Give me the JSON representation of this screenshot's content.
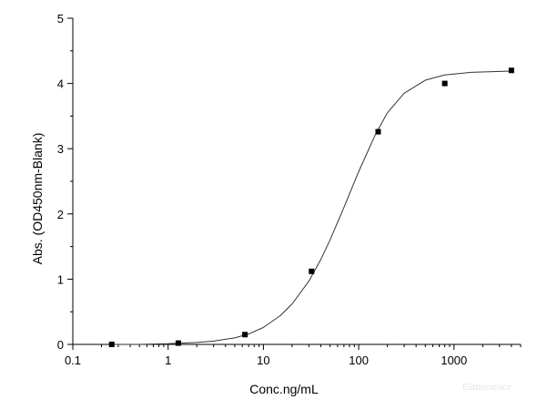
{
  "chart_data": {
    "type": "scatter",
    "xscale": "log",
    "xlabel": "Conc.ng/mL",
    "ylabel": "Abs. (OD450nm-Blank)",
    "xlim": [
      0.1,
      5000
    ],
    "ylim": [
      0,
      5
    ],
    "xticks": [
      {
        "value": 0.1,
        "label": "0.1"
      },
      {
        "value": 1,
        "label": "1"
      },
      {
        "value": 10,
        "label": "10"
      },
      {
        "value": 100,
        "label": "100"
      },
      {
        "value": 1000,
        "label": "1000"
      }
    ],
    "yticks": [
      {
        "value": 0,
        "label": "0"
      },
      {
        "value": 1,
        "label": "1"
      },
      {
        "value": 2,
        "label": "2"
      },
      {
        "value": 3,
        "label": "3"
      },
      {
        "value": 4,
        "label": "4"
      },
      {
        "value": 5,
        "label": "5"
      }
    ],
    "grid": false,
    "legend": "none",
    "series": [
      {
        "marker": "square",
        "x": [
          0.256,
          1.28,
          6.4,
          32,
          160,
          800,
          4000
        ],
        "y": [
          0.0,
          0.02,
          0.15,
          1.12,
          3.26,
          4.0,
          4.2
        ]
      }
    ],
    "fit_curve": {
      "x": [
        0.25,
        0.5,
        1,
        2,
        3,
        5,
        7,
        10,
        15,
        20,
        30,
        40,
        50,
        70,
        100,
        150,
        200,
        300,
        500,
        800,
        1500,
        4000
      ],
      "y": [
        0.0,
        0.0,
        0.01,
        0.03,
        0.05,
        0.1,
        0.16,
        0.26,
        0.44,
        0.62,
        0.97,
        1.3,
        1.6,
        2.1,
        2.65,
        3.22,
        3.55,
        3.85,
        4.05,
        4.13,
        4.17,
        4.19
      ]
    }
  },
  "watermark": "Elabscience",
  "colors": {
    "axis": "#000000",
    "marker": "#000000",
    "curve": "#333333"
  }
}
